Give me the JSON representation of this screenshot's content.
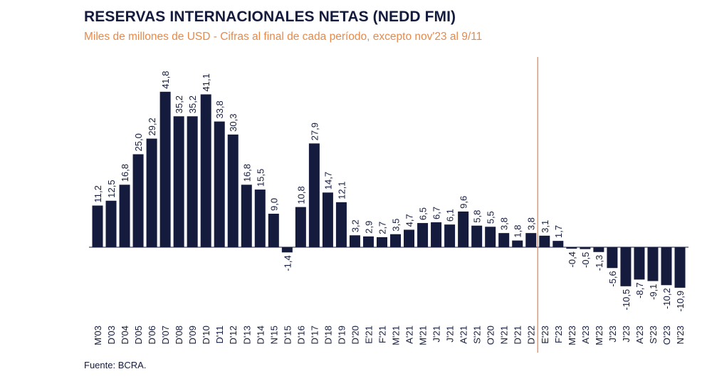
{
  "chart_data": {
    "type": "bar",
    "title": "RESERVAS INTERNACIONALES NETAS (NEDD FMI)",
    "subtitle": "Miles de millones de USD - Cifras al final de cada período, excepto nov'23 al 9/11",
    "source": "Fuente: BCRA.",
    "xlabel": "",
    "ylabel": "",
    "categories": [
      "M'03",
      "D'03",
      "D'04",
      "D'05",
      "D'06",
      "D'07",
      "D'08",
      "D'09",
      "D'10",
      "D'11",
      "D'12",
      "D'13",
      "D'14",
      "N'15",
      "D'15",
      "D'16",
      "D'17",
      "D'18",
      "D'19",
      "D'20",
      "E'21",
      "F'21",
      "M'21",
      "A'21",
      "M'21",
      "J'21",
      "J'21",
      "A'21",
      "S'21",
      "O'20",
      "N'21",
      "D'21",
      "D'22",
      "E'23",
      "F'23",
      "M'23",
      "A'23",
      "M'23",
      "J'23",
      "J'23",
      "A'23",
      "S'23",
      "O'23",
      "N'23"
    ],
    "values": [
      11.2,
      12.5,
      16.8,
      25.0,
      29.2,
      41.8,
      35.2,
      35.2,
      41.1,
      33.8,
      30.3,
      16.8,
      15.5,
      9.0,
      -1.4,
      10.8,
      27.9,
      14.7,
      12.1,
      3.2,
      2.9,
      2.7,
      3.5,
      4.7,
      6.5,
      6.7,
      6.1,
      9.6,
      5.8,
      5.5,
      3.8,
      1.8,
      3.8,
      3.1,
      1.7,
      -0.4,
      -0.5,
      -1.3,
      -5.6,
      -10.5,
      -8.7,
      -9.1,
      -10.2,
      -10.9
    ],
    "labels": [
      "11,2",
      "12,5",
      "16,8",
      "25,0",
      "29,2",
      "41,8",
      "35,2",
      "35,2",
      "41,1",
      "33,8",
      "30,3",
      "16,8",
      "15,5",
      "9,0",
      "-1,4",
      "10,8",
      "27,9",
      "14,7",
      "12,1",
      "3,2",
      "2,9",
      "2,7",
      "3,5",
      "4,7",
      "6,5",
      "6,7",
      "6,1",
      "9,6",
      "5,8",
      "5,5",
      "3,8",
      "1,8",
      "3,8",
      "3,1",
      "1,7",
      "-0,4",
      "-0,5",
      "-1,3",
      "-5,6",
      "-10,5",
      "-8,7",
      "-9,1",
      "-10,2",
      "-10,9"
    ],
    "ylim": [
      -12,
      44
    ],
    "grid": false,
    "bar_color": "#141b3d",
    "divider_color": "#e8894a",
    "divider_after_category": "D'22"
  }
}
